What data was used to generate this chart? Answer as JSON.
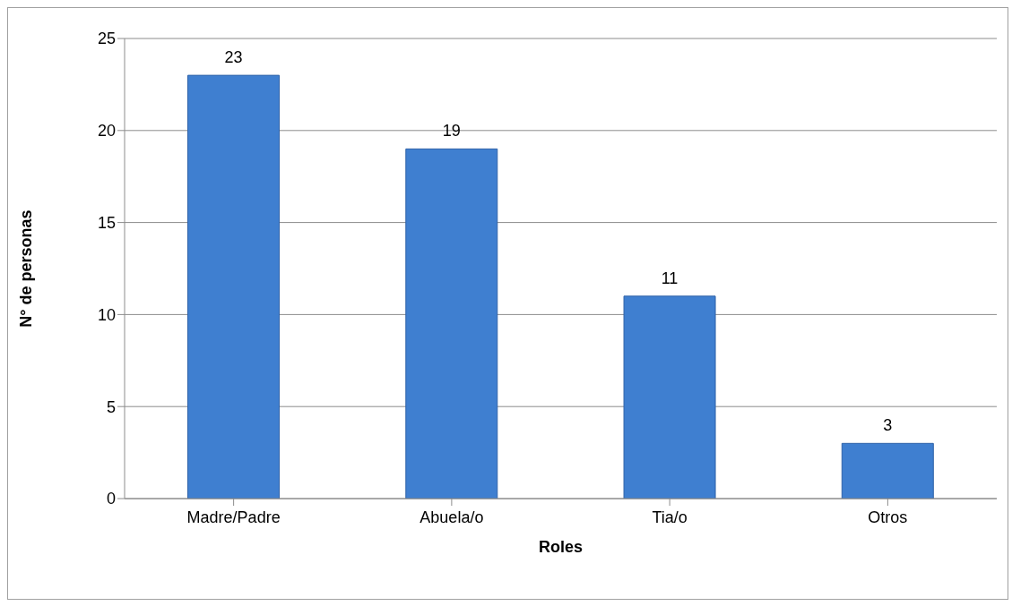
{
  "chart_data": {
    "type": "bar",
    "xlabel": "Roles",
    "ylabel": "N° de personas",
    "categories": [
      "Madre/Padre",
      "Abuela/o",
      "Tia/o",
      "Otros"
    ],
    "values": [
      23,
      19,
      11,
      3
    ],
    "color": "#3f7fd0",
    "ylim": [
      0,
      25
    ],
    "yticks": [
      0,
      5,
      10,
      15,
      20,
      25
    ],
    "grid": "y",
    "data_labels": true
  }
}
